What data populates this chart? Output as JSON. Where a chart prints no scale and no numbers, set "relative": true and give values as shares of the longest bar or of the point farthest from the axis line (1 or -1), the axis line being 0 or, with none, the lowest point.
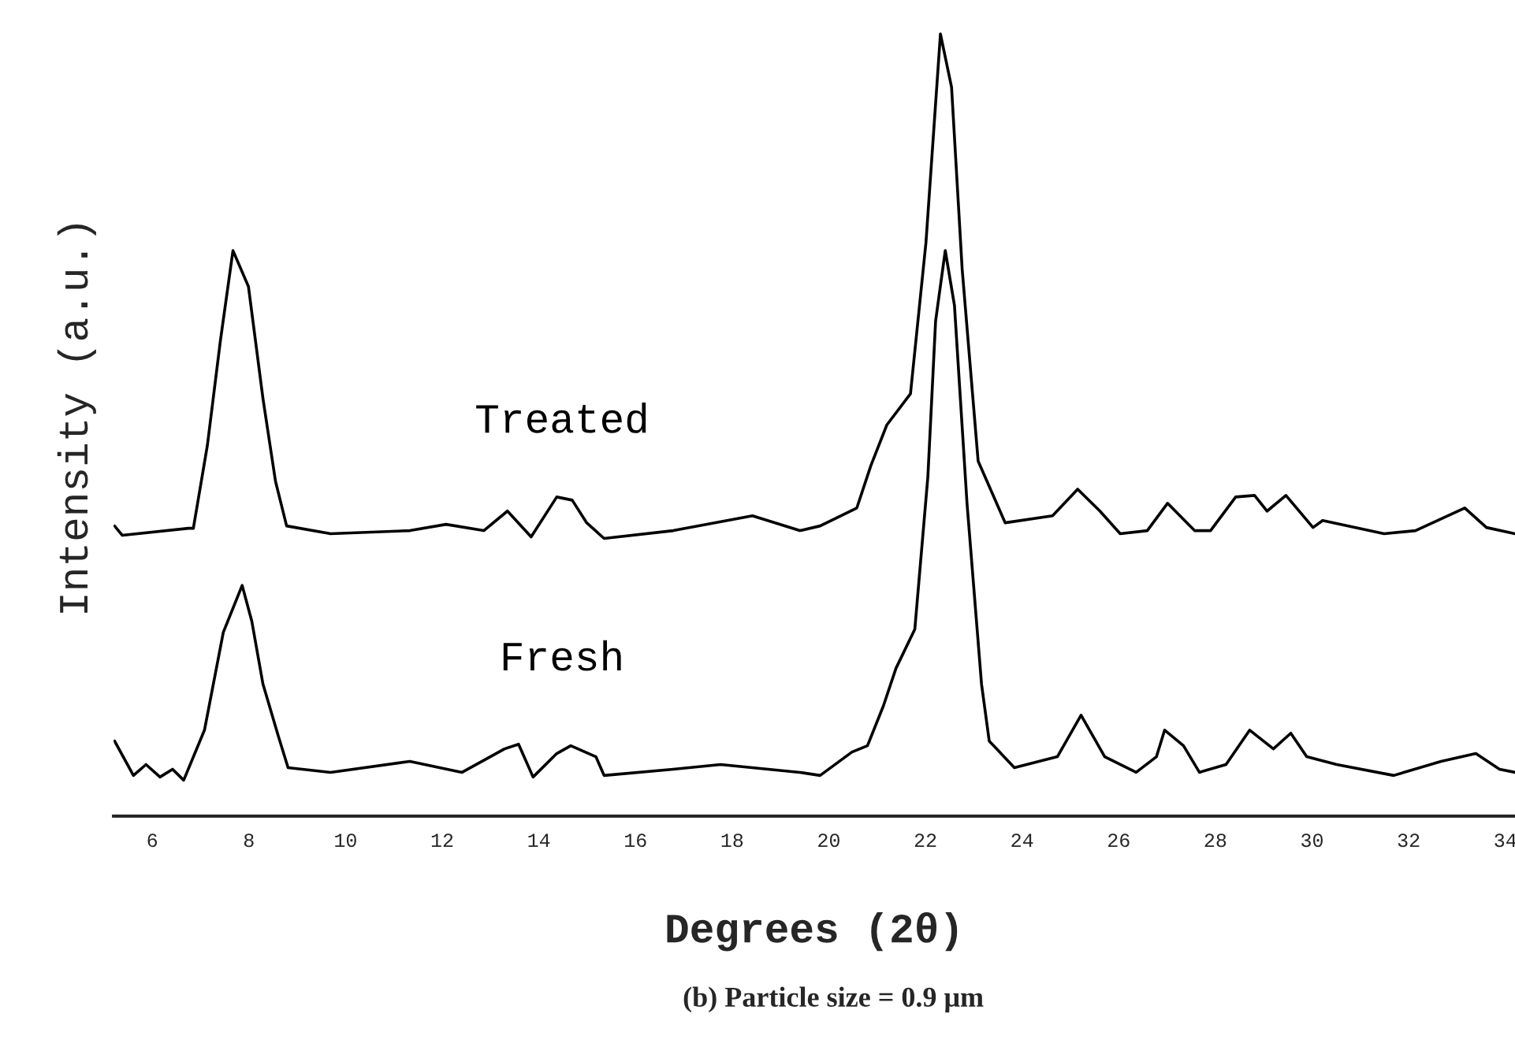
{
  "chart_data": {
    "type": "line",
    "relative": true,
    "xlabel": "Degrees (2θ)",
    "ylabel": "Intensity (a.u.)",
    "annotations": [
      "(b) Particle size = 0.9 μm"
    ],
    "xlim": [
      5.2,
      34.2
    ],
    "xticks": [
      6,
      8,
      10,
      12,
      14,
      16,
      18,
      20,
      22,
      24,
      26,
      28,
      30,
      32,
      34
    ],
    "tick_labels": "x",
    "grid": false,
    "legend": false,
    "marker": "none",
    "line_style": "solid",
    "series": [
      {
        "name": "Treated",
        "color": "#000000",
        "x": [
          5.22,
          5.38,
          6.75,
          6.85,
          7.14,
          7.41,
          7.67,
          7.99,
          8.29,
          8.55,
          8.78,
          9.69,
          11.33,
          12.08,
          12.86,
          13.35,
          13.84,
          14.37,
          14.69,
          14.99,
          15.35,
          16.78,
          18.42,
          19.4,
          19.82,
          20.58,
          20.87,
          21.2,
          21.69,
          22.01,
          22.31,
          22.54,
          22.76,
          23.09,
          23.65,
          24.63,
          25.15,
          25.61,
          26.03,
          26.59,
          27.01,
          27.57,
          27.9,
          28.42,
          28.81,
          29.07,
          29.46,
          30.02,
          30.22,
          31.49,
          32.14,
          33.16,
          33.61,
          34.2
        ],
        "values": [
          0.371,
          0.359,
          0.368,
          0.368,
          0.474,
          0.608,
          0.723,
          0.677,
          0.534,
          0.428,
          0.371,
          0.361,
          0.365,
          0.373,
          0.365,
          0.39,
          0.357,
          0.408,
          0.404,
          0.375,
          0.355,
          0.365,
          0.384,
          0.365,
          0.371,
          0.394,
          0.448,
          0.5,
          0.54,
          0.733,
          1.0,
          0.932,
          0.699,
          0.454,
          0.375,
          0.384,
          0.418,
          0.39,
          0.361,
          0.365,
          0.4,
          0.365,
          0.365,
          0.408,
          0.41,
          0.39,
          0.41,
          0.369,
          0.378,
          0.361,
          0.365,
          0.394,
          0.369,
          0.361
        ]
      },
      {
        "name": "Fresh",
        "color": "#000000",
        "x": [
          5.22,
          5.61,
          5.87,
          6.16,
          6.42,
          6.65,
          7.08,
          7.47,
          7.86,
          8.06,
          8.29,
          8.61,
          8.81,
          9.69,
          11.33,
          12.41,
          13.29,
          13.58,
          13.88,
          14.37,
          14.66,
          15.18,
          15.35,
          16.78,
          17.76,
          19.4,
          19.82,
          20.48,
          20.8,
          21.13,
          21.39,
          21.78,
          22.05,
          22.21,
          22.41,
          22.6,
          22.86,
          23.16,
          23.32,
          23.84,
          24.73,
          25.22,
          25.71,
          26.36,
          26.78,
          26.95,
          27.34,
          27.67,
          28.22,
          28.71,
          29.2,
          29.56,
          29.89,
          30.51,
          31.69,
          32.67,
          33.39,
          33.88,
          34.2
        ],
        "values": [
          0.096,
          0.052,
          0.066,
          0.05,
          0.06,
          0.046,
          0.11,
          0.235,
          0.295,
          0.249,
          0.169,
          0.102,
          0.062,
          0.056,
          0.07,
          0.056,
          0.086,
          0.092,
          0.05,
          0.08,
          0.09,
          0.076,
          0.052,
          0.06,
          0.066,
          0.056,
          0.052,
          0.082,
          0.09,
          0.141,
          0.189,
          0.239,
          0.434,
          0.633,
          0.723,
          0.653,
          0.4,
          0.169,
          0.096,
          0.062,
          0.076,
          0.129,
          0.076,
          0.056,
          0.076,
          0.11,
          0.09,
          0.056,
          0.066,
          0.11,
          0.086,
          0.106,
          0.076,
          0.066,
          0.052,
          0.07,
          0.08,
          0.06,
          0.056
        ]
      }
    ]
  }
}
